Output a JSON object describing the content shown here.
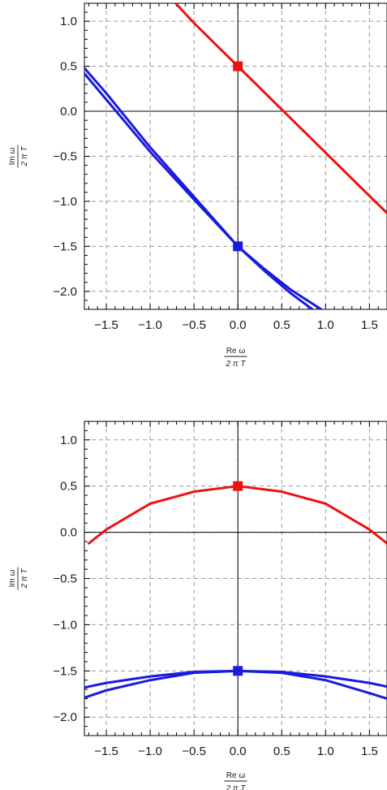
{
  "chart_data": [
    {
      "type": "line",
      "title": "",
      "xlabel": {
        "numerator": "Re ω",
        "denominator": "2 π T"
      },
      "ylabel": {
        "numerator": "Im ω",
        "denominator": "2 π T"
      },
      "xlim": [
        -1.75,
        1.7
      ],
      "ylim": [
        -2.2,
        1.2
      ],
      "x_ticks": [
        -1.5,
        -1.0,
        -0.5,
        0.0,
        0.5,
        1.0,
        1.5
      ],
      "x_tick_labels": [
        "−1.5",
        "−1.0",
        "−0.5",
        "0.0",
        "0.5",
        "1.0",
        "1.5"
      ],
      "y_ticks": [
        1.0,
        0.5,
        0.0,
        -0.5,
        -1.0,
        -1.5,
        -2.0
      ],
      "y_tick_labels": [
        "1.0",
        "0.5",
        "0.0",
        "−0.5",
        "−1.0",
        "−1.5",
        "−2.0"
      ],
      "grid": true,
      "colors": {
        "red": "#ee1111",
        "blue": "#1a1ae0"
      },
      "series": [
        {
          "color": "#ee1111",
          "x": [
            -0.71,
            -0.5,
            -0.25,
            0.0,
            0.25,
            0.5,
            0.75,
            1.0,
            1.25,
            1.5,
            1.7
          ],
          "y": [
            1.2,
            0.98,
            0.74,
            0.5,
            0.26,
            0.02,
            -0.22,
            -0.46,
            -0.7,
            -0.94,
            -1.13
          ]
        },
        {
          "color": "#1a1ae0",
          "x": [
            -1.75,
            -1.5,
            -1.0,
            -0.5,
            0.0,
            0.3,
            0.6,
            0.95
          ],
          "y": [
            0.48,
            0.2,
            -0.4,
            -0.95,
            -1.5,
            -1.75,
            -1.98,
            -2.2
          ]
        },
        {
          "color": "#1a1ae0",
          "x": [
            -1.75,
            -1.5,
            -1.0,
            -0.5,
            0.0,
            0.3,
            0.6,
            0.85
          ],
          "y": [
            0.42,
            0.13,
            -0.45,
            -0.98,
            -1.5,
            -1.77,
            -2.02,
            -2.2
          ]
        }
      ],
      "markers": [
        {
          "x": 0.0,
          "y": 0.5,
          "color": "#ee1111"
        },
        {
          "x": 0.0,
          "y": -1.5,
          "color": "#1a1ae0"
        }
      ]
    },
    {
      "type": "line",
      "title": "",
      "xlabel": {
        "numerator": "Re ω",
        "denominator": "2 π T"
      },
      "ylabel": {
        "numerator": "Im ω",
        "denominator": "2 π T"
      },
      "xlim": [
        -1.75,
        1.7
      ],
      "ylim": [
        -2.2,
        1.2
      ],
      "x_ticks": [
        -1.5,
        -1.0,
        -0.5,
        0.0,
        0.5,
        1.0,
        1.5
      ],
      "x_tick_labels": [
        "−1.5",
        "−1.0",
        "−0.5",
        "0.0",
        "0.5",
        "1.0",
        "1.5"
      ],
      "y_ticks": [
        1.0,
        0.5,
        0.0,
        -0.5,
        -1.0,
        -1.5,
        -2.0
      ],
      "y_tick_labels": [
        "1.0",
        "0.5",
        "0.0",
        "−0.5",
        "−1.0",
        "−1.5",
        "−2.0"
      ],
      "grid": true,
      "colors": {
        "red": "#ee1111",
        "blue": "#1a1ae0"
      },
      "series": [
        {
          "color": "#ee1111",
          "x": [
            -1.7,
            -1.5,
            -1.0,
            -0.5,
            0.0,
            0.5,
            1.0,
            1.5,
            1.7
          ],
          "y": [
            -0.12,
            0.03,
            0.31,
            0.44,
            0.5,
            0.44,
            0.31,
            0.03,
            -0.12
          ]
        },
        {
          "color": "#1a1ae0",
          "x": [
            -1.75,
            -1.5,
            -1.0,
            -0.5,
            0.0,
            0.5,
            1.0,
            1.5,
            1.7
          ],
          "y": [
            -1.68,
            -1.63,
            -1.56,
            -1.51,
            -1.5,
            -1.51,
            -1.56,
            -1.63,
            -1.67
          ]
        },
        {
          "color": "#1a1ae0",
          "x": [
            -1.75,
            -1.5,
            -1.0,
            -0.5,
            0.0,
            0.5,
            1.0,
            1.5,
            1.7
          ],
          "y": [
            -1.79,
            -1.71,
            -1.6,
            -1.52,
            -1.5,
            -1.52,
            -1.6,
            -1.74,
            -1.8
          ]
        }
      ],
      "markers": [
        {
          "x": 0.0,
          "y": 0.5,
          "color": "#ee1111"
        },
        {
          "x": 0.0,
          "y": -1.5,
          "color": "#1a1ae0"
        }
      ]
    }
  ]
}
